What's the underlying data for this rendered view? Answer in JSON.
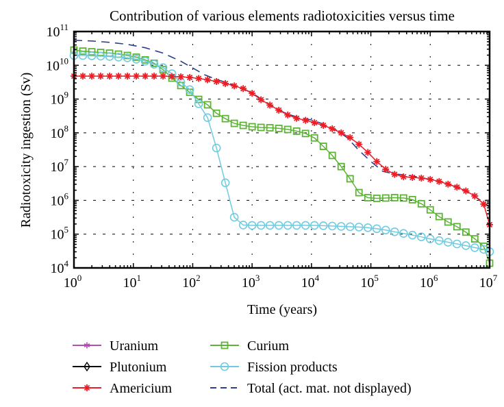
{
  "chart_data": {
    "type": "line",
    "title": "Contribution of various elements radiotoxicities versus time",
    "xlabel": "Time (years)",
    "ylabel": "Radiotoxicity ingestion (Sv)",
    "xscale": "log",
    "yscale": "log",
    "xlim": [
      1,
      10000000
    ],
    "ylim": [
      10000,
      100000000000
    ],
    "grid": true,
    "legend_position": "below",
    "x_ticks": [
      {
        "base": "10",
        "exp": "0"
      },
      {
        "base": "10",
        "exp": "1"
      },
      {
        "base": "10",
        "exp": "2"
      },
      {
        "base": "10",
        "exp": "3"
      },
      {
        "base": "10",
        "exp": "4"
      },
      {
        "base": "10",
        "exp": "5"
      },
      {
        "base": "10",
        "exp": "6"
      },
      {
        "base": "10",
        "exp": "7"
      }
    ],
    "y_ticks": [
      {
        "base": "10",
        "exp": "4"
      },
      {
        "base": "10",
        "exp": "5"
      },
      {
        "base": "10",
        "exp": "6"
      },
      {
        "base": "10",
        "exp": "7"
      },
      {
        "base": "10",
        "exp": "8"
      },
      {
        "base": "10",
        "exp": "9"
      },
      {
        "base": "10",
        "exp": "10"
      },
      {
        "base": "10",
        "exp": "11"
      }
    ],
    "series": [
      {
        "name": "Uranium",
        "color": "#b04fb0",
        "marker": "star",
        "dash": "solid",
        "visible_in_plot": false,
        "log10_x": [],
        "log10_y": []
      },
      {
        "name": "Plutonium",
        "color": "#000000",
        "marker": "diamond",
        "dash": "solid",
        "visible_in_plot": false,
        "log10_x": [],
        "log10_y": []
      },
      {
        "name": "Americium",
        "color": "#ee1c24",
        "marker": "asterisk",
        "dash": "solid",
        "visible_in_plot": true,
        "log10_x": [
          0,
          0.15,
          0.3,
          0.45,
          0.6,
          0.75,
          0.9,
          1.05,
          1.2,
          1.35,
          1.5,
          1.65,
          1.8,
          1.95,
          2.1,
          2.25,
          2.4,
          2.55,
          2.7,
          2.85,
          3.0,
          3.15,
          3.3,
          3.45,
          3.6,
          3.75,
          3.9,
          4.05,
          4.2,
          4.35,
          4.5,
          4.65,
          4.8,
          4.95,
          5.1,
          5.25,
          5.4,
          5.55,
          5.7,
          5.85,
          6.0,
          6.15,
          6.3,
          6.45,
          6.6,
          6.75,
          6.9,
          7.0
        ],
        "log10_y": [
          9.68,
          9.68,
          9.68,
          9.68,
          9.68,
          9.68,
          9.68,
          9.68,
          9.68,
          9.68,
          9.68,
          9.67,
          9.66,
          9.64,
          9.61,
          9.57,
          9.52,
          9.46,
          9.39,
          9.31,
          9.17,
          8.98,
          8.82,
          8.67,
          8.53,
          8.43,
          8.37,
          8.3,
          8.22,
          8.12,
          8.0,
          7.86,
          7.66,
          7.42,
          7.15,
          6.92,
          6.77,
          6.7,
          6.68,
          6.66,
          6.62,
          6.56,
          6.48,
          6.39,
          6.28,
          6.13,
          5.89,
          5.28
        ]
      },
      {
        "name": "Curium",
        "color": "#5cb335",
        "marker": "square",
        "dash": "solid",
        "visible_in_plot": true,
        "log10_x": [
          0,
          0.15,
          0.3,
          0.45,
          0.6,
          0.75,
          0.9,
          1.05,
          1.2,
          1.35,
          1.5,
          1.65,
          1.8,
          1.95,
          2.1,
          2.25,
          2.4,
          2.55,
          2.7,
          2.85,
          3.0,
          3.15,
          3.3,
          3.45,
          3.6,
          3.75,
          3.9,
          4.05,
          4.2,
          4.35,
          4.5,
          4.65,
          4.8,
          4.95,
          5.1,
          5.25,
          5.4,
          5.55,
          5.7,
          5.85,
          6.0,
          6.15,
          6.3,
          6.45,
          6.6,
          6.75,
          6.9,
          7.0
        ],
        "log10_y": [
          10.45,
          10.42,
          10.4,
          10.38,
          10.36,
          10.33,
          10.29,
          10.24,
          10.16,
          10.06,
          9.87,
          9.62,
          9.4,
          9.2,
          8.99,
          8.83,
          8.58,
          8.42,
          8.28,
          8.22,
          8.18,
          8.16,
          8.15,
          8.13,
          8.1,
          8.05,
          7.98,
          7.85,
          7.6,
          7.33,
          7.0,
          6.64,
          6.23,
          6.08,
          6.06,
          6.07,
          6.08,
          6.07,
          6.02,
          5.9,
          5.72,
          5.52,
          5.36,
          5.22,
          5.06,
          4.86,
          4.64,
          4.14
        ]
      },
      {
        "name": "Fission products",
        "color": "#6fcbe0",
        "marker": "circle",
        "dash": "solid",
        "visible_in_plot": true,
        "log10_x": [
          0,
          0.15,
          0.3,
          0.45,
          0.6,
          0.75,
          0.9,
          1.05,
          1.2,
          1.35,
          1.5,
          1.65,
          1.8,
          1.95,
          2.1,
          2.25,
          2.4,
          2.55,
          2.7,
          2.85,
          3.0,
          3.15,
          3.3,
          3.45,
          3.6,
          3.75,
          3.9,
          4.05,
          4.2,
          4.35,
          4.5,
          4.65,
          4.8,
          4.95,
          5.1,
          5.25,
          5.4,
          5.55,
          5.7,
          5.85,
          6.0,
          6.15,
          6.3,
          6.45,
          6.6,
          6.75,
          6.9,
          7.0
        ],
        "log10_y": [
          10.29,
          10.29,
          10.28,
          10.27,
          10.26,
          10.24,
          10.22,
          10.18,
          10.12,
          10.03,
          9.93,
          9.75,
          9.5,
          9.28,
          8.86,
          8.45,
          7.55,
          6.52,
          5.5,
          5.27,
          5.26,
          5.26,
          5.26,
          5.26,
          5.26,
          5.26,
          5.26,
          5.26,
          5.25,
          5.24,
          5.23,
          5.22,
          5.21,
          5.19,
          5.16,
          5.12,
          5.07,
          5.02,
          4.97,
          4.92,
          4.86,
          4.81,
          4.76,
          4.71,
          4.66,
          4.6,
          4.55,
          4.48
        ]
      },
      {
        "name": "Total (act. mat. not displayed)",
        "color": "#2a3e8f",
        "marker": "none",
        "dash": "dashed",
        "visible_in_plot": true,
        "log10_x": [
          0,
          0.3,
          0.6,
          0.9,
          1.2,
          1.5,
          1.8,
          2.0,
          2.2,
          2.4,
          2.6,
          2.8,
          3.0,
          3.2,
          3.4,
          3.6,
          3.8,
          4.0,
          4.2,
          4.4,
          4.6,
          4.8,
          5.0,
          5.2,
          5.4,
          5.6,
          5.8,
          6.0,
          6.2,
          6.4,
          6.6,
          6.8,
          7.0
        ],
        "log10_y": [
          10.74,
          10.72,
          10.68,
          10.62,
          10.52,
          10.36,
          10.12,
          9.92,
          9.72,
          9.58,
          9.47,
          9.35,
          9.18,
          8.95,
          8.72,
          8.55,
          8.45,
          8.38,
          8.26,
          8.1,
          7.86,
          7.48,
          7.15,
          6.86,
          6.78,
          6.75,
          6.69,
          6.62,
          6.54,
          6.42,
          6.27,
          6.06,
          5.8
        ]
      }
    ]
  }
}
